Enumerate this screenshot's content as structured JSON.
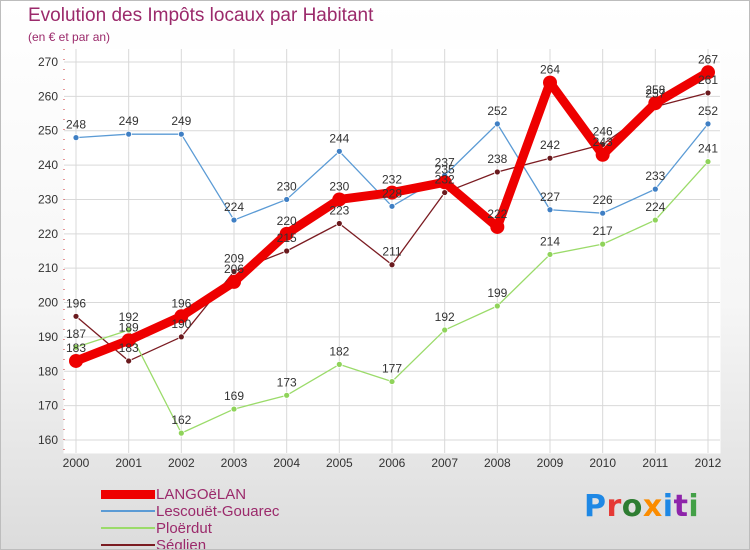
{
  "title": "Evolution des Impôts locaux par Habitant",
  "subtitle": "(en € et par an)",
  "logo": {
    "text": "Proxiti",
    "letter_colors": [
      "#1e88e5",
      "#e53935",
      "#2e7d32",
      "#fb8c00",
      "#1e88e5",
      "#8e24aa",
      "#43a047"
    ]
  },
  "chart_data": {
    "type": "line",
    "categories": [
      "2000",
      "2001",
      "2002",
      "2003",
      "2004",
      "2005",
      "2006",
      "2007",
      "2008",
      "2009",
      "2010",
      "2011",
      "2012"
    ],
    "ylim": [
      160,
      270
    ],
    "yticks": [
      160,
      170,
      180,
      190,
      200,
      210,
      220,
      230,
      240,
      250,
      260,
      270
    ],
    "grid": true,
    "legend_position": "bottom-left",
    "series": [
      {
        "name": "LANGOëLAN",
        "color": "#ee0000",
        "values": [
          183,
          189,
          196,
          206,
          220,
          230,
          232,
          235,
          222,
          264,
          243,
          258,
          267
        ]
      },
      {
        "name": "Lescouët-Gouarec",
        "color": "#5b9bd5",
        "values": [
          248,
          249,
          249,
          224,
          230,
          244,
          228,
          237,
          252,
          227,
          226,
          233,
          252
        ]
      },
      {
        "name": "Ploërdut",
        "color": "#9bdb6a",
        "values": [
          187,
          192,
          162,
          169,
          173,
          182,
          177,
          192,
          199,
          214,
          217,
          224,
          241
        ]
      },
      {
        "name": "Séglien",
        "color": "#7b1c22",
        "values": [
          196,
          183,
          190,
          209,
          215,
          223,
          211,
          232,
          238,
          242,
          246,
          257,
          261
        ]
      }
    ]
  }
}
